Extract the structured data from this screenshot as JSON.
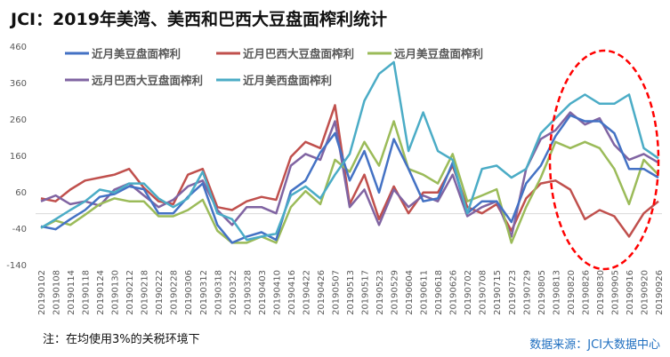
{
  "chart_data": {
    "type": "line",
    "title": "JCI：2019年美湾、美西和巴西大豆盘面榨利统计",
    "xlabel": "",
    "ylabel": "",
    "ylim": [
      -140,
      460
    ],
    "yticks": [
      460,
      360,
      260,
      160,
      60,
      -40,
      -140
    ],
    "grid": false,
    "legend_position": "top",
    "categories": [
      "20190102",
      "20190108",
      "20190114",
      "20190118",
      "20190124",
      "20190130",
      "20190212",
      "20190218",
      "20190222",
      "20190228",
      "20190306",
      "20190312",
      "20190318",
      "20190322",
      "20190328",
      "20190403",
      "20190410",
      "20190416",
      "20190422",
      "20190426",
      "20190507",
      "20190513",
      "20190517",
      "20190523",
      "20190529",
      "20190604",
      "20190611",
      "20190618",
      "20190626",
      "20190702",
      "20190708",
      "20190715",
      "20190723",
      "20190729",
      "20190805",
      "20190813",
      "20190820",
      "20190826",
      "20190830",
      "20190905",
      "20190916",
      "20190920",
      "20190926"
    ],
    "series": [
      {
        "name": "近月美豆盘面榨利",
        "color": "#4472c4",
        "values": [
          -35,
          -43,
          -15,
          10,
          46,
          54,
          75,
          67,
          1,
          1,
          46,
          83,
          -31,
          -80,
          -63,
          -51,
          -72,
          62,
          91,
          168,
          221,
          91,
          172,
          58,
          205,
          123,
          34,
          42,
          140,
          1,
          34,
          34,
          -23,
          83,
          132,
          213,
          270,
          254,
          254,
          221,
          123,
          123,
          99
        ]
      },
      {
        "name": "近月巴西大豆盘面榨利",
        "color": "#c0504d",
        "values": [
          42,
          34,
          66,
          91,
          99,
          107,
          123,
          71,
          34,
          26,
          107,
          123,
          18,
          10,
          34,
          46,
          38,
          156,
          197,
          180,
          298,
          26,
          107,
          -15,
          75,
          1,
          58,
          58,
          132,
          18,
          1,
          26,
          -47,
          42,
          83,
          91,
          66,
          -15,
          10,
          -7,
          -63,
          1,
          34
        ]
      },
      {
        "name": "远月美豆盘面榨利",
        "color": "#9bbb59",
        "values": [
          -39,
          -19,
          -31,
          -3,
          26,
          42,
          34,
          34,
          -7,
          -7,
          10,
          38,
          -47,
          -80,
          -80,
          -63,
          -80,
          18,
          62,
          26,
          148,
          115,
          197,
          132,
          254,
          123,
          107,
          83,
          164,
          34,
          50,
          67,
          -80,
          18,
          99,
          197,
          180,
          197,
          180,
          123,
          26,
          148,
          107
        ]
      },
      {
        "name": "远月巴西大豆盘面榨利",
        "color": "#8064a2",
        "values": [
          34,
          50,
          26,
          34,
          22,
          66,
          83,
          50,
          18,
          38,
          75,
          91,
          10,
          -31,
          18,
          18,
          1,
          132,
          164,
          148,
          254,
          18,
          66,
          -31,
          66,
          18,
          50,
          34,
          107,
          -7,
          18,
          34,
          -63,
          123,
          205,
          229,
          278,
          245,
          262,
          189,
          148,
          164,
          140
        ]
      },
      {
        "name": "近月美西盘面榨利",
        "color": "#4bacc6",
        "values": [
          -39,
          -15,
          10,
          34,
          66,
          58,
          83,
          83,
          42,
          18,
          42,
          115,
          1,
          -15,
          -72,
          -63,
          -55,
          50,
          75,
          42,
          107,
          164,
          310,
          384,
          416,
          172,
          278,
          172,
          148,
          1,
          123,
          132,
          99,
          123,
          221,
          262,
          302,
          327,
          302,
          302,
          327,
          180,
          152
        ]
      }
    ],
    "annotation": "red dashed ellipse highlighting 20190813–20190926"
  },
  "footer": {
    "note": "注：在均使用3%的关税环境下",
    "source": "数据来源：JCI大数据中心"
  }
}
